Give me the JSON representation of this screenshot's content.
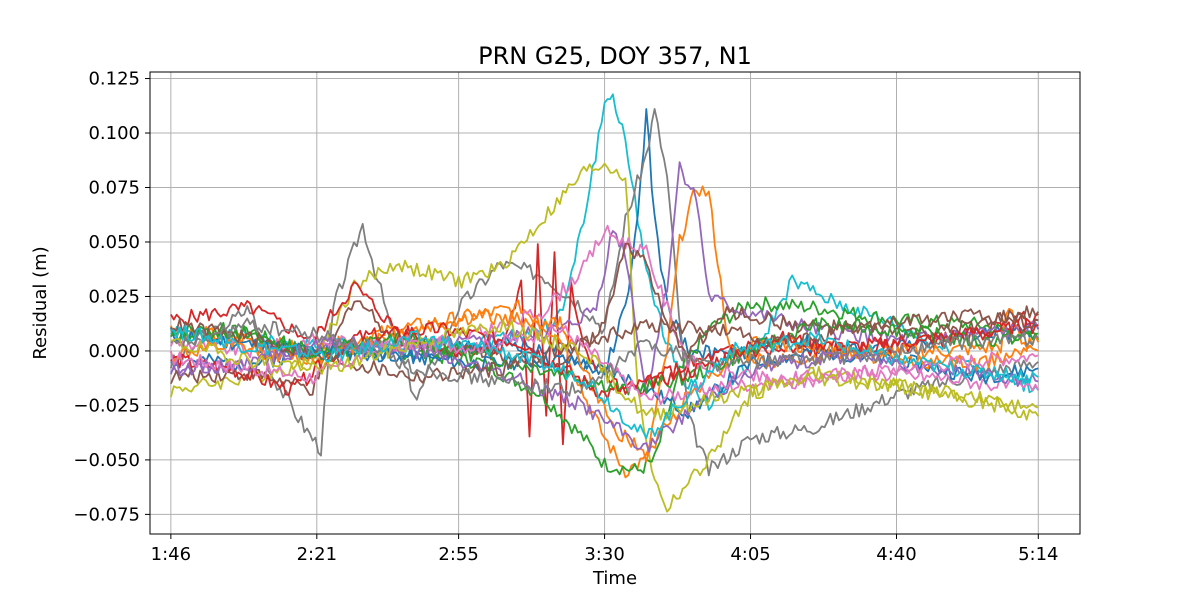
{
  "chart_data": {
    "type": "line",
    "title": "PRN G25, DOY 357, N1",
    "xlabel": "Time",
    "ylabel": "Residual (m)",
    "grid": true,
    "x_tick_labels": [
      "1:46",
      "2:21",
      "2:55",
      "3:30",
      "4:05",
      "4:40",
      "5:14"
    ],
    "x_tick_minutes": [
      106,
      141,
      175,
      210,
      245,
      280,
      314
    ],
    "xlim": [
      101,
      324
    ],
    "y_ticks": [
      0.125,
      0.1,
      0.075,
      0.05,
      0.025,
      0.0,
      -0.025,
      -0.05,
      -0.075
    ],
    "y_tick_labels": [
      "0.125",
      "0.100",
      "0.075",
      "0.050",
      "0.025",
      "0.000",
      "−0.025",
      "−0.050",
      "−0.075"
    ],
    "ylim": [
      -0.084,
      0.128
    ],
    "colors": [
      "#1f77b4",
      "#ff7f0e",
      "#2ca02c",
      "#d62728",
      "#9467bd",
      "#8c564b",
      "#e377c2",
      "#7f7f7f",
      "#bcbd22",
      "#17becf"
    ],
    "series": [
      {
        "color": "#17becf",
        "x": [
          106,
          125,
          135,
          145,
          160,
          175,
          185,
          195,
          200,
          205,
          210,
          212,
          215,
          218,
          222,
          228,
          235,
          245,
          255,
          265,
          280,
          300,
          314
        ],
        "y": [
          0.008,
          0.006,
          0.002,
          0.004,
          0.0,
          0.003,
          0.006,
          0.01,
          0.018,
          0.06,
          0.113,
          0.118,
          0.095,
          0.06,
          0.02,
          -0.01,
          -0.025,
          -0.005,
          0.032,
          0.022,
          0.012,
          -0.008,
          -0.018
        ]
      },
      {
        "color": "#1f77b4",
        "x": [
          106,
          125,
          145,
          165,
          185,
          200,
          210,
          215,
          218,
          220,
          222,
          225,
          230,
          240,
          255,
          270,
          290,
          314
        ],
        "y": [
          -0.004,
          -0.006,
          0.002,
          -0.003,
          0.004,
          0.0,
          -0.01,
          0.02,
          0.06,
          0.11,
          0.06,
          0.02,
          0.0,
          -0.002,
          0.005,
          0.0,
          0.006,
          0.01
        ]
      },
      {
        "color": "#7f7f7f",
        "x": [
          106,
          125,
          130,
          138,
          142,
          145,
          152,
          160,
          165,
          175,
          185,
          195,
          205,
          210,
          215,
          220,
          222,
          225,
          230,
          235,
          245,
          260,
          280,
          300,
          314
        ],
        "y": [
          -0.006,
          0.02,
          -0.01,
          -0.035,
          -0.045,
          0.02,
          0.058,
          0.002,
          -0.022,
          0.02,
          0.04,
          0.035,
          0.02,
          0.01,
          0.06,
          0.09,
          0.11,
          0.08,
          -0.03,
          -0.055,
          -0.04,
          -0.035,
          -0.02,
          -0.01,
          -0.005
        ]
      },
      {
        "color": "#bcbd22",
        "x": [
          106,
          125,
          140,
          150,
          160,
          175,
          185,
          195,
          205,
          210,
          215,
          218,
          222,
          225,
          228,
          235,
          245,
          260,
          280,
          300,
          314
        ],
        "y": [
          -0.018,
          -0.012,
          -0.005,
          0.03,
          0.04,
          0.032,
          0.038,
          0.06,
          0.082,
          0.086,
          0.08,
          -0.02,
          -0.06,
          -0.072,
          -0.065,
          -0.05,
          -0.02,
          -0.01,
          -0.015,
          -0.022,
          -0.03
        ]
      },
      {
        "color": "#d62728",
        "x": [
          106,
          125,
          140,
          150,
          160,
          175,
          185,
          190,
          192,
          194,
          196,
          198,
          200,
          202,
          205,
          210,
          215,
          225,
          240,
          260,
          280,
          300,
          314
        ],
        "y": [
          0.014,
          0.02,
          0.005,
          0.03,
          0.01,
          0.0,
          0.0,
          0.03,
          -0.04,
          0.05,
          -0.03,
          0.045,
          -0.045,
          0.03,
          0.0,
          -0.01,
          -0.02,
          -0.01,
          0.0,
          0.0,
          0.002,
          0.008,
          0.017
        ]
      },
      {
        "color": "#ff7f0e",
        "x": [
          106,
          125,
          140,
          160,
          175,
          190,
          200,
          205,
          210,
          215,
          220,
          225,
          228,
          232,
          235,
          240,
          250,
          270,
          290,
          305,
          307,
          310,
          314
        ],
        "y": [
          0.01,
          0.005,
          0.0,
          0.01,
          0.015,
          0.02,
          0.005,
          -0.02,
          -0.04,
          -0.055,
          -0.05,
          0.0,
          0.05,
          0.075,
          0.072,
          0.0,
          -0.005,
          0.0,
          0.0,
          0.002,
          0.02,
          0.005,
          0.0
        ]
      },
      {
        "color": "#2ca02c",
        "x": [
          106,
          125,
          140,
          160,
          180,
          195,
          205,
          210,
          218,
          222,
          228,
          235,
          245,
          260,
          280,
          300,
          314
        ],
        "y": [
          0.01,
          0.008,
          -0.002,
          0.0,
          -0.005,
          -0.02,
          -0.04,
          -0.052,
          -0.055,
          -0.05,
          -0.01,
          0.01,
          0.022,
          0.02,
          0.014,
          0.012,
          0.005
        ]
      },
      {
        "color": "#9467bd",
        "x": [
          106,
          125,
          140,
          160,
          180,
          200,
          208,
          212,
          215,
          220,
          225,
          228,
          232,
          235,
          240,
          260,
          280,
          300,
          314
        ],
        "y": [
          -0.01,
          -0.005,
          0.0,
          0.002,
          0.004,
          0.01,
          0.02,
          0.056,
          0.045,
          -0.02,
          0.03,
          0.085,
          0.07,
          0.025,
          0.02,
          0.01,
          0.005,
          0.008,
          0.01
        ]
      },
      {
        "color": "#e377c2",
        "x": [
          106,
          125,
          140,
          160,
          180,
          195,
          205,
          210,
          215,
          220,
          225,
          230,
          240,
          255,
          270,
          290,
          314
        ],
        "y": [
          0.004,
          0.0,
          0.005,
          0.002,
          0.008,
          0.018,
          0.038,
          0.055,
          0.05,
          0.045,
          0.02,
          -0.005,
          -0.01,
          -0.015,
          -0.01,
          -0.012,
          -0.018
        ]
      },
      {
        "color": "#8c564b",
        "x": [
          106,
          125,
          140,
          150,
          160,
          180,
          200,
          210,
          215,
          220,
          225,
          230,
          240,
          255,
          270,
          290,
          305,
          314
        ],
        "y": [
          -0.012,
          -0.01,
          -0.018,
          0.025,
          0.005,
          0.0,
          -0.005,
          0.012,
          0.05,
          0.04,
          0.01,
          0.0,
          0.018,
          0.012,
          0.01,
          0.008,
          0.015,
          0.018
        ]
      },
      {
        "color": "#1f77b4",
        "x": [
          106,
          120,
          140,
          160,
          180,
          200,
          215,
          230,
          245,
          260,
          280,
          300,
          314
        ],
        "y": [
          0.008,
          0.004,
          0.0,
          -0.002,
          -0.006,
          -0.004,
          -0.012,
          -0.028,
          -0.006,
          0.0,
          -0.004,
          -0.012,
          -0.008
        ]
      },
      {
        "color": "#ff7f0e",
        "x": [
          106,
          120,
          140,
          160,
          180,
          200,
          212,
          220,
          230,
          245,
          260,
          280,
          300,
          314
        ],
        "y": [
          -0.002,
          0.002,
          -0.004,
          0.008,
          0.016,
          0.012,
          -0.035,
          -0.048,
          -0.02,
          0.004,
          0.002,
          -0.004,
          -0.006,
          0.004
        ]
      },
      {
        "color": "#2ca02c",
        "x": [
          106,
          120,
          140,
          160,
          180,
          200,
          215,
          230,
          245,
          260,
          280,
          300,
          314
        ],
        "y": [
          0.006,
          0.01,
          0.0,
          0.006,
          -0.002,
          -0.01,
          -0.018,
          -0.012,
          0.0,
          0.012,
          0.01,
          0.004,
          0.008
        ]
      },
      {
        "color": "#d62728",
        "x": [
          106,
          120,
          135,
          150,
          170,
          190,
          210,
          230,
          250,
          270,
          290,
          314
        ],
        "y": [
          -0.004,
          -0.008,
          -0.018,
          0.006,
          0.01,
          0.004,
          -0.02,
          -0.01,
          0.006,
          0.002,
          0.006,
          0.012
        ]
      },
      {
        "color": "#9467bd",
        "x": [
          106,
          125,
          145,
          165,
          185,
          205,
          220,
          235,
          250,
          270,
          290,
          314
        ],
        "y": [
          -0.008,
          -0.006,
          0.004,
          0.0,
          -0.01,
          -0.025,
          -0.045,
          -0.02,
          -0.006,
          -0.002,
          -0.008,
          -0.014
        ]
      },
      {
        "color": "#8c564b",
        "x": [
          106,
          125,
          145,
          165,
          185,
          205,
          220,
          235,
          255,
          275,
          295,
          314
        ],
        "y": [
          0.012,
          0.006,
          -0.004,
          -0.012,
          -0.008,
          0.004,
          0.012,
          0.01,
          0.004,
          0.012,
          0.016,
          0.014
        ]
      },
      {
        "color": "#e377c2",
        "x": [
          106,
          125,
          140,
          160,
          180,
          200,
          220,
          240,
          260,
          280,
          300,
          314
        ],
        "y": [
          -0.003,
          -0.008,
          -0.012,
          0.004,
          0.002,
          0.01,
          -0.022,
          -0.016,
          -0.012,
          -0.008,
          -0.004,
          -0.002
        ]
      },
      {
        "color": "#7f7f7f",
        "x": [
          106,
          125,
          145,
          165,
          185,
          205,
          220,
          235,
          255,
          275,
          295,
          314
        ],
        "y": [
          0.002,
          0.012,
          0.006,
          -0.008,
          -0.014,
          -0.018,
          0.004,
          -0.006,
          -0.004,
          -0.002,
          0.004,
          0.006
        ]
      },
      {
        "color": "#bcbd22",
        "x": [
          106,
          125,
          145,
          165,
          185,
          205,
          220,
          240,
          260,
          280,
          300,
          314
        ],
        "y": [
          0.004,
          -0.004,
          -0.008,
          0.004,
          0.012,
          0.0,
          -0.03,
          -0.02,
          -0.012,
          -0.016,
          -0.024,
          -0.026
        ]
      },
      {
        "color": "#17becf",
        "x": [
          106,
          125,
          145,
          165,
          185,
          205,
          220,
          240,
          260,
          280,
          300,
          314
        ],
        "y": [
          0.01,
          0.002,
          -0.002,
          0.006,
          0.0,
          -0.012,
          -0.04,
          0.0,
          0.006,
          -0.004,
          -0.01,
          -0.012
        ]
      }
    ]
  }
}
